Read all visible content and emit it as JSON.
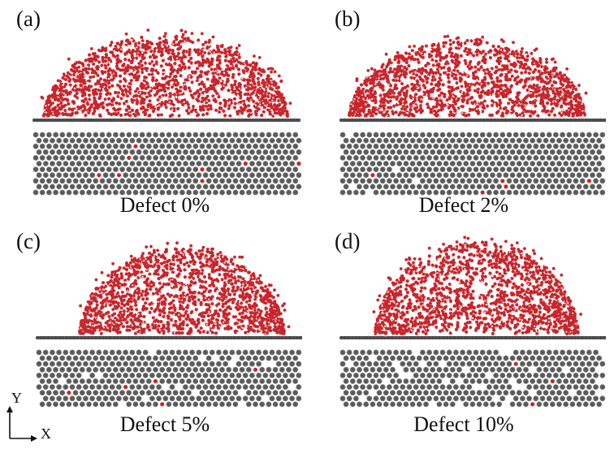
{
  "panels": [
    {
      "label": "(a)",
      "caption": "Defect 0%",
      "defect_fraction": 0.0
    },
    {
      "label": "(b)",
      "caption": "Defect 2%",
      "defect_fraction": 0.02
    },
    {
      "label": "(c)",
      "caption": "Defect 5%",
      "defect_fraction": 0.05
    },
    {
      "label": "(d)",
      "caption": "Defect 10%",
      "defect_fraction": 0.1
    }
  ],
  "axes": {
    "y_label": "Y",
    "x_label": "X"
  },
  "colors": {
    "water_oxygen": "#c8262c",
    "water_hydrogen": "#f2f2f2",
    "carbon": "#5a5a5a",
    "carbon_bond": "#7a7a7a",
    "defect_atom": "#c8262c"
  }
}
